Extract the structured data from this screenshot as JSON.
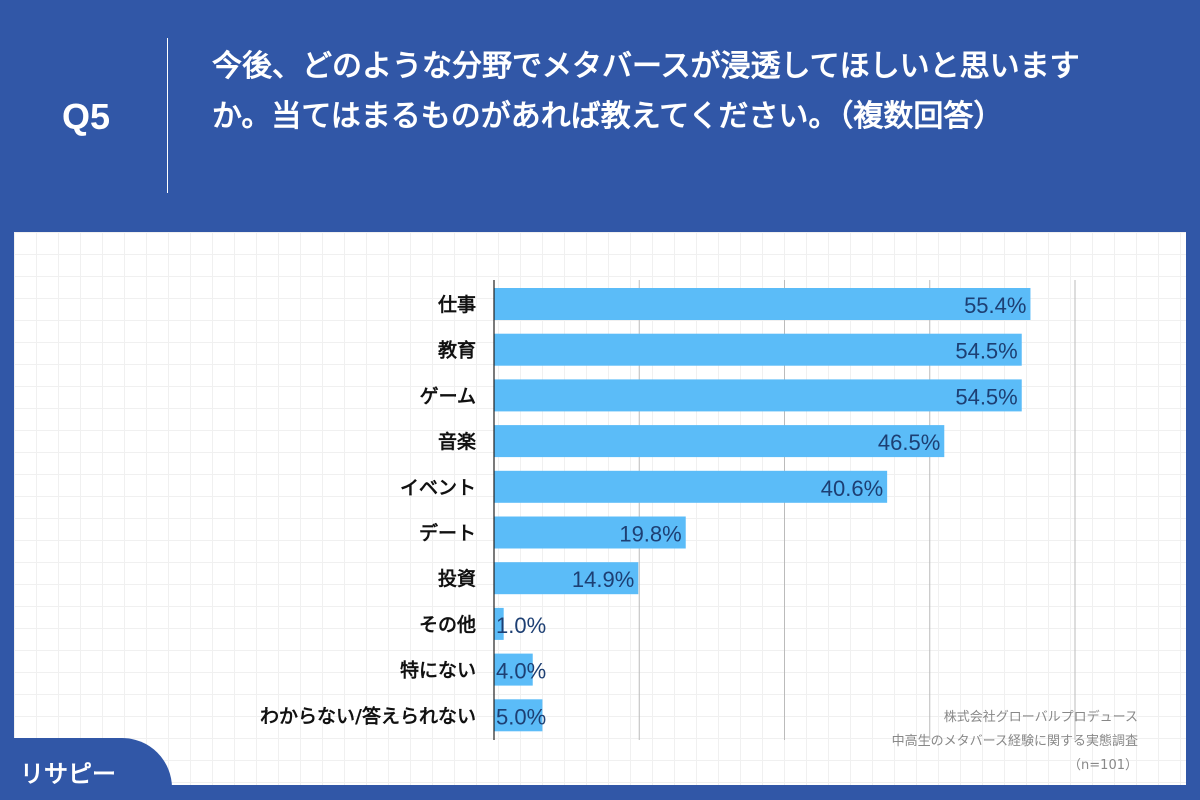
{
  "header": {
    "q_label": "Q5",
    "question": "今後、どのような分野でメタバースが浸透してほしいと思いますか。当てはまるものがあれば教えてください。（複数回答）"
  },
  "chart_data": {
    "type": "bar",
    "orientation": "horizontal",
    "categories": [
      "仕事",
      "教育",
      "ゲーム",
      "音楽",
      "イベント",
      "デート",
      "投資",
      "その他",
      "特にない",
      "わからない/答えられない"
    ],
    "values": [
      55.4,
      54.5,
      54.5,
      46.5,
      40.6,
      19.8,
      14.9,
      1.0,
      4.0,
      5.0
    ],
    "labels": [
      "55.4%",
      "54.5%",
      "54.5%",
      "46.5%",
      "40.6%",
      "19.8%",
      "14.9%",
      "1.0%",
      "4.0%",
      "5.0%"
    ],
    "xlim": [
      0,
      60
    ],
    "gridlines": [
      15,
      30,
      45,
      60
    ],
    "grid": true,
    "bar_color": "#5bbcf8",
    "label_color": "#1d3f73"
  },
  "source": {
    "line1": "株式会社グローバルプロデュース",
    "line2": "中高生のメタバース経験に関する実態調査",
    "line3": "（n=101）"
  },
  "logo": {
    "text": "リサピー"
  }
}
